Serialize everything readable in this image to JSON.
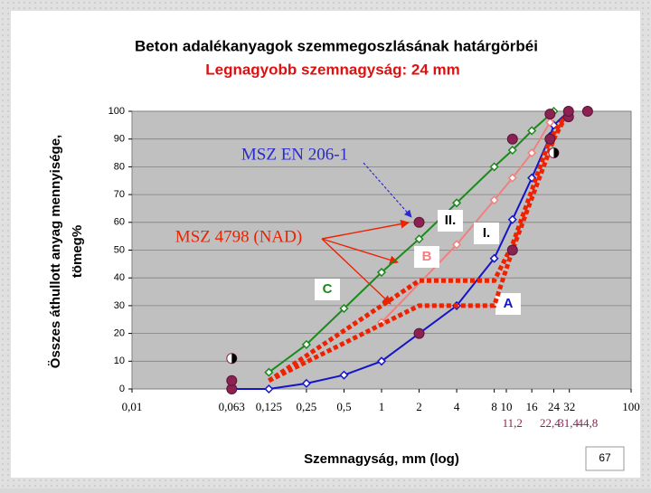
{
  "chart_data": {
    "type": "line",
    "title": "Beton adalékanyagok szemmegoszlásának határgörbéi",
    "subtitle": "Legnagyobb szemnagyság: 24 mm",
    "x_label": "Szemnagyság, mm (log)",
    "y_label": [
      "Összes áthullott anyag mennyisége,",
      "tömeg%"
    ],
    "xlog": true,
    "xlim": [
      0.01,
      100
    ],
    "ylim": [
      0,
      100
    ],
    "grid": true,
    "xticks": [
      {
        "value": 0.01,
        "label": "0,01"
      },
      {
        "value": 0.063,
        "label": "0,063"
      },
      {
        "value": 0.125,
        "label": "0,125"
      },
      {
        "value": 0.25,
        "label": "0,25"
      },
      {
        "value": 0.5,
        "label": "0,5"
      },
      1,
      2,
      4,
      8,
      10,
      16,
      24,
      32,
      100
    ],
    "xticks_secondary": [
      {
        "value": 11.2,
        "label": "11,2"
      },
      {
        "value": 22.4,
        "label": "22,4"
      },
      {
        "value": 31.4,
        "label": "31,4"
      },
      {
        "value": 44.8,
        "label": "44,8"
      }
    ],
    "secondary_tick_color": "#8b2252",
    "yticks": [
      0,
      10,
      20,
      30,
      40,
      50,
      60,
      70,
      80,
      90,
      100
    ],
    "series": [
      {
        "label": "A",
        "color": "#1515c8",
        "marker": "diamond",
        "dash": false,
        "x": [
          0.063,
          0.125,
          0.25,
          0.5,
          1,
          4,
          8,
          11.2,
          16,
          22.4,
          24,
          31.5
        ],
        "values": [
          0,
          0,
          2,
          5,
          10,
          30,
          47,
          61,
          76,
          91,
          95,
          100
        ]
      },
      {
        "label": "B",
        "color": "#f08080",
        "marker": "diamond",
        "dash": false,
        "x": [
          1,
          4,
          8,
          11.2,
          16,
          22.4
        ],
        "values": [
          24,
          52,
          68,
          76,
          85,
          96
        ]
      },
      {
        "label": "C",
        "color": "#1a8a1a",
        "marker": "diamond",
        "dash": false,
        "x": [
          0.125,
          0.25,
          0.5,
          1,
          2,
          4,
          8,
          11.2,
          16,
          24
        ],
        "values": [
          6,
          16,
          29,
          42,
          54,
          67,
          80,
          86,
          93,
          100
        ]
      },
      {
        "label": "I.",
        "color": "#ee2200",
        "marker": "none",
        "dash": true,
        "x": [
          0.125,
          2,
          8,
          11.2,
          24,
          31.5
        ],
        "values": [
          3,
          30,
          30,
          50,
          90,
          100
        ]
      },
      {
        "label": "II.",
        "color": "#ee2200",
        "marker": "none",
        "dash": true,
        "x": [
          0.125,
          2,
          8,
          11.2,
          22.4,
          31.5
        ],
        "values": [
          3,
          39,
          39,
          52,
          90,
          100
        ]
      },
      {
        "color": "#8b2252",
        "marker": "dot",
        "dash": false,
        "noline": true,
        "x": [
          0.063,
          0.063,
          2,
          2,
          11.2,
          11.2,
          22.4,
          22.4,
          31.5,
          31.5,
          44.8
        ],
        "values": [
          0,
          3,
          20,
          60,
          50,
          90,
          90,
          99,
          98,
          100,
          100
        ]
      },
      {
        "color": "#000000",
        "marker": "halfdot",
        "dash": false,
        "noline": true,
        "x": [
          0.063,
          24
        ],
        "values": [
          11,
          85
        ]
      }
    ],
    "annotations": [
      "MSZ EN 206-1",
      "MSZ 4798 (NAD)"
    ],
    "page_number": "67"
  }
}
